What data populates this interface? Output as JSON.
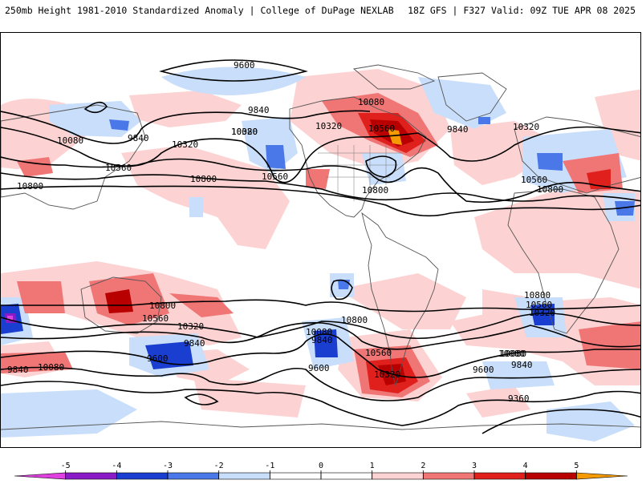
{
  "header": {
    "left_title": "250mb Height 1981-2010 Standardized Anomaly | College of DuPage NEXLAB",
    "right_title": "18Z GFS | F327 Valid: 09Z TUE APR 08 2025"
  },
  "map": {
    "icon": "world-map-icon",
    "colors": {
      "land_outline": "#555555",
      "contour": "#000000",
      "neg5": "#e040e0",
      "neg4": "#8a1cc8",
      "neg3": "#1a3fd0",
      "neg2": "#4b78e8",
      "neg1": "#c8defa",
      "pos1": "#fcd2d2",
      "pos2": "#f07575",
      "pos3": "#e0201c",
      "pos4": "#b80000",
      "pos5": "#f59a00"
    },
    "contour_labels": [
      "9600",
      "9840",
      "10320",
      "10080",
      "10800",
      "10560",
      "10800",
      "10560",
      "9840",
      "10080",
      "10320",
      "10800",
      "10560",
      "10320",
      "10800",
      "10560",
      "9840",
      "10320",
      "10080",
      "10800",
      "10560",
      "10080",
      "9840",
      "9600",
      "10320",
      "10560",
      "10320",
      "10080",
      "9840",
      "9600",
      "9840",
      "10080",
      "10800",
      "10800",
      "10560",
      "10320",
      "10080",
      "9840",
      "9600",
      "9360",
      "9840",
      "10080"
    ]
  },
  "colorbar": {
    "ticks": [
      "-5",
      "-4",
      "-3",
      "-2",
      "-1",
      "0",
      "1",
      "2",
      "3",
      "4",
      "5"
    ],
    "colors": [
      "#e040e0",
      "#8a1cc8",
      "#1a3fd0",
      "#4b78e8",
      "#c8defa",
      "#ffffff",
      "#ffffff",
      "#fcd2d2",
      "#f07575",
      "#e0201c",
      "#b80000",
      "#f59a00"
    ]
  }
}
